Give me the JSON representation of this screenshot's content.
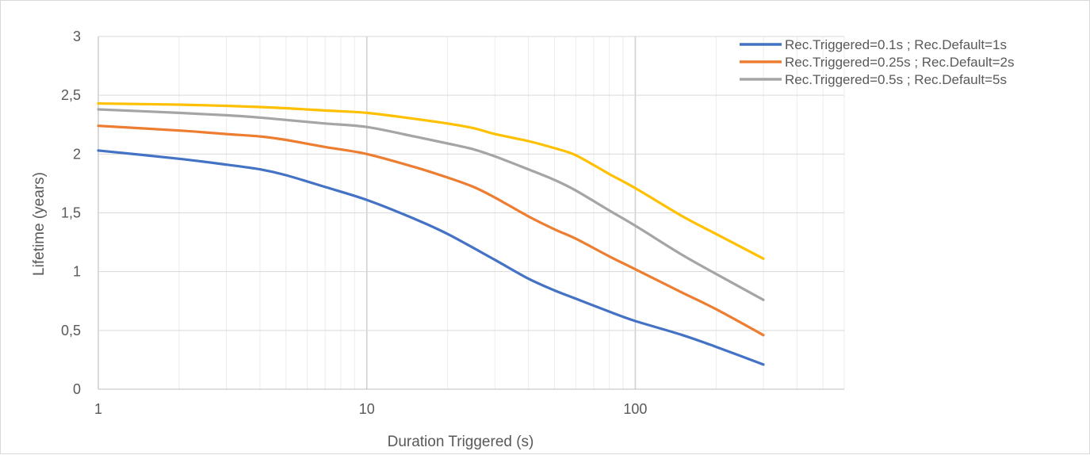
{
  "chart_data": {
    "type": "line",
    "title": "",
    "xlabel": "Duration Triggered (s)",
    "ylabel": "Lifetime (years)",
    "x_scale": "log",
    "xlim": [
      1,
      600
    ],
    "ylim": [
      0,
      3
    ],
    "grid": true,
    "legend_position": "top-right",
    "x_ticks": [
      {
        "value": 1,
        "label": "1"
      },
      {
        "value": 10,
        "label": "10"
      },
      {
        "value": 100,
        "label": "100"
      }
    ],
    "y_ticks": [
      {
        "value": 0,
        "label": "0"
      },
      {
        "value": 0.5,
        "label": "0,5"
      },
      {
        "value": 1,
        "label": "1"
      },
      {
        "value": 1.5,
        "label": "1,5"
      },
      {
        "value": 2,
        "label": "2"
      },
      {
        "value": 2.5,
        "label": "2,5"
      },
      {
        "value": 3,
        "label": "3"
      }
    ],
    "series": [
      {
        "name": "Rec.Triggered=0.1s ; Rec.Default=1s",
        "color": "#4472c4",
        "in_legend": true,
        "points": [
          [
            1,
            2.03
          ],
          [
            2,
            1.96
          ],
          [
            3,
            1.91
          ],
          [
            4,
            1.87
          ],
          [
            5,
            1.82
          ],
          [
            7,
            1.72
          ],
          [
            10,
            1.61
          ],
          [
            15,
            1.45
          ],
          [
            20,
            1.32
          ],
          [
            30,
            1.1
          ],
          [
            40,
            0.94
          ],
          [
            50,
            0.84
          ],
          [
            60,
            0.77
          ],
          [
            80,
            0.66
          ],
          [
            100,
            0.58
          ],
          [
            150,
            0.46
          ],
          [
            200,
            0.36
          ],
          [
            300,
            0.21
          ]
        ]
      },
      {
        "name": "Rec.Triggered=0.25s ; Rec.Default=2s",
        "color": "#ed7d31",
        "in_legend": true,
        "points": [
          [
            1,
            2.24
          ],
          [
            2,
            2.2
          ],
          [
            3,
            2.17
          ],
          [
            4,
            2.15
          ],
          [
            5,
            2.12
          ],
          [
            7,
            2.06
          ],
          [
            10,
            2.0
          ],
          [
            15,
            1.89
          ],
          [
            20,
            1.8
          ],
          [
            25,
            1.72
          ],
          [
            30,
            1.63
          ],
          [
            40,
            1.47
          ],
          [
            50,
            1.36
          ],
          [
            60,
            1.28
          ],
          [
            80,
            1.13
          ],
          [
            100,
            1.02
          ],
          [
            150,
            0.82
          ],
          [
            200,
            0.68
          ],
          [
            300,
            0.46
          ]
        ]
      },
      {
        "name": "Rec.Triggered=0.5s ; Rec.Default=5s",
        "color": "#a5a5a5",
        "in_legend": true,
        "points": [
          [
            1,
            2.38
          ],
          [
            2,
            2.35
          ],
          [
            3,
            2.33
          ],
          [
            4,
            2.31
          ],
          [
            5,
            2.29
          ],
          [
            7,
            2.26
          ],
          [
            10,
            2.23
          ],
          [
            15,
            2.15
          ],
          [
            20,
            2.09
          ],
          [
            25,
            2.04
          ],
          [
            30,
            1.98
          ],
          [
            40,
            1.87
          ],
          [
            50,
            1.78
          ],
          [
            60,
            1.69
          ],
          [
            80,
            1.52
          ],
          [
            100,
            1.39
          ],
          [
            150,
            1.14
          ],
          [
            200,
            0.98
          ],
          [
            300,
            0.76
          ]
        ]
      },
      {
        "name": "",
        "color": "#ffc000",
        "in_legend": false,
        "points": [
          [
            1,
            2.43
          ],
          [
            2,
            2.42
          ],
          [
            3,
            2.41
          ],
          [
            4,
            2.4
          ],
          [
            5,
            2.39
          ],
          [
            7,
            2.37
          ],
          [
            10,
            2.35
          ],
          [
            15,
            2.3
          ],
          [
            20,
            2.26
          ],
          [
            25,
            2.22
          ],
          [
            30,
            2.17
          ],
          [
            40,
            2.11
          ],
          [
            50,
            2.05
          ],
          [
            60,
            1.99
          ],
          [
            80,
            1.83
          ],
          [
            100,
            1.71
          ],
          [
            150,
            1.47
          ],
          [
            200,
            1.32
          ],
          [
            300,
            1.11
          ]
        ]
      }
    ]
  }
}
